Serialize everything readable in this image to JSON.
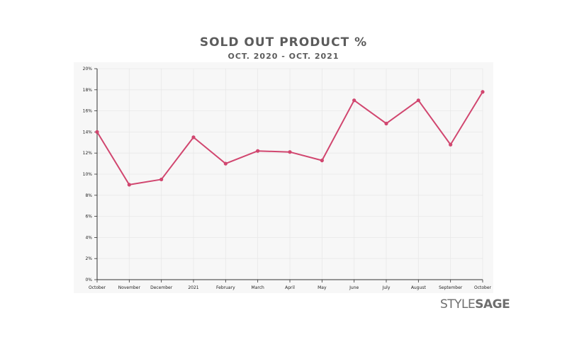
{
  "header": {
    "title": "SOLD OUT PRODUCT %",
    "subtitle": "OCT. 2020 - OCT. 2021"
  },
  "brand": {
    "logo_part1": "STYLE",
    "logo_part2": "SAGE"
  },
  "colors": {
    "line": "#d1466f",
    "background": "#ffffff",
    "plot_background": "#f7f7f7",
    "grid": "#e8e8e8",
    "axis": "#333333",
    "text": "#5c5c5c",
    "logo": "#6e6e6e"
  },
  "chart_data": {
    "type": "line",
    "title": "SOLD OUT PRODUCT %",
    "subtitle": "OCT. 2020 - OCT. 2021",
    "xlabel": "",
    "ylabel": "",
    "categories": [
      "October",
      "November",
      "December",
      "2021",
      "February",
      "March",
      "April",
      "May",
      "June",
      "July",
      "August",
      "September",
      "October"
    ],
    "values": [
      14.0,
      9.0,
      9.5,
      13.5,
      11.0,
      12.2,
      12.1,
      11.3,
      17.0,
      14.8,
      17.0,
      12.8,
      17.8
    ],
    "unit": "%",
    "ylim": [
      0,
      20
    ],
    "yticks": [
      0,
      2,
      4,
      6,
      8,
      10,
      12,
      14,
      16,
      18,
      20
    ],
    "ytick_labels": [
      "0%",
      "2%",
      "4%",
      "6%",
      "8%",
      "10%",
      "12%",
      "14%",
      "16%",
      "18%",
      "20%"
    ],
    "grid": true,
    "legend": "none",
    "markers": true
  }
}
